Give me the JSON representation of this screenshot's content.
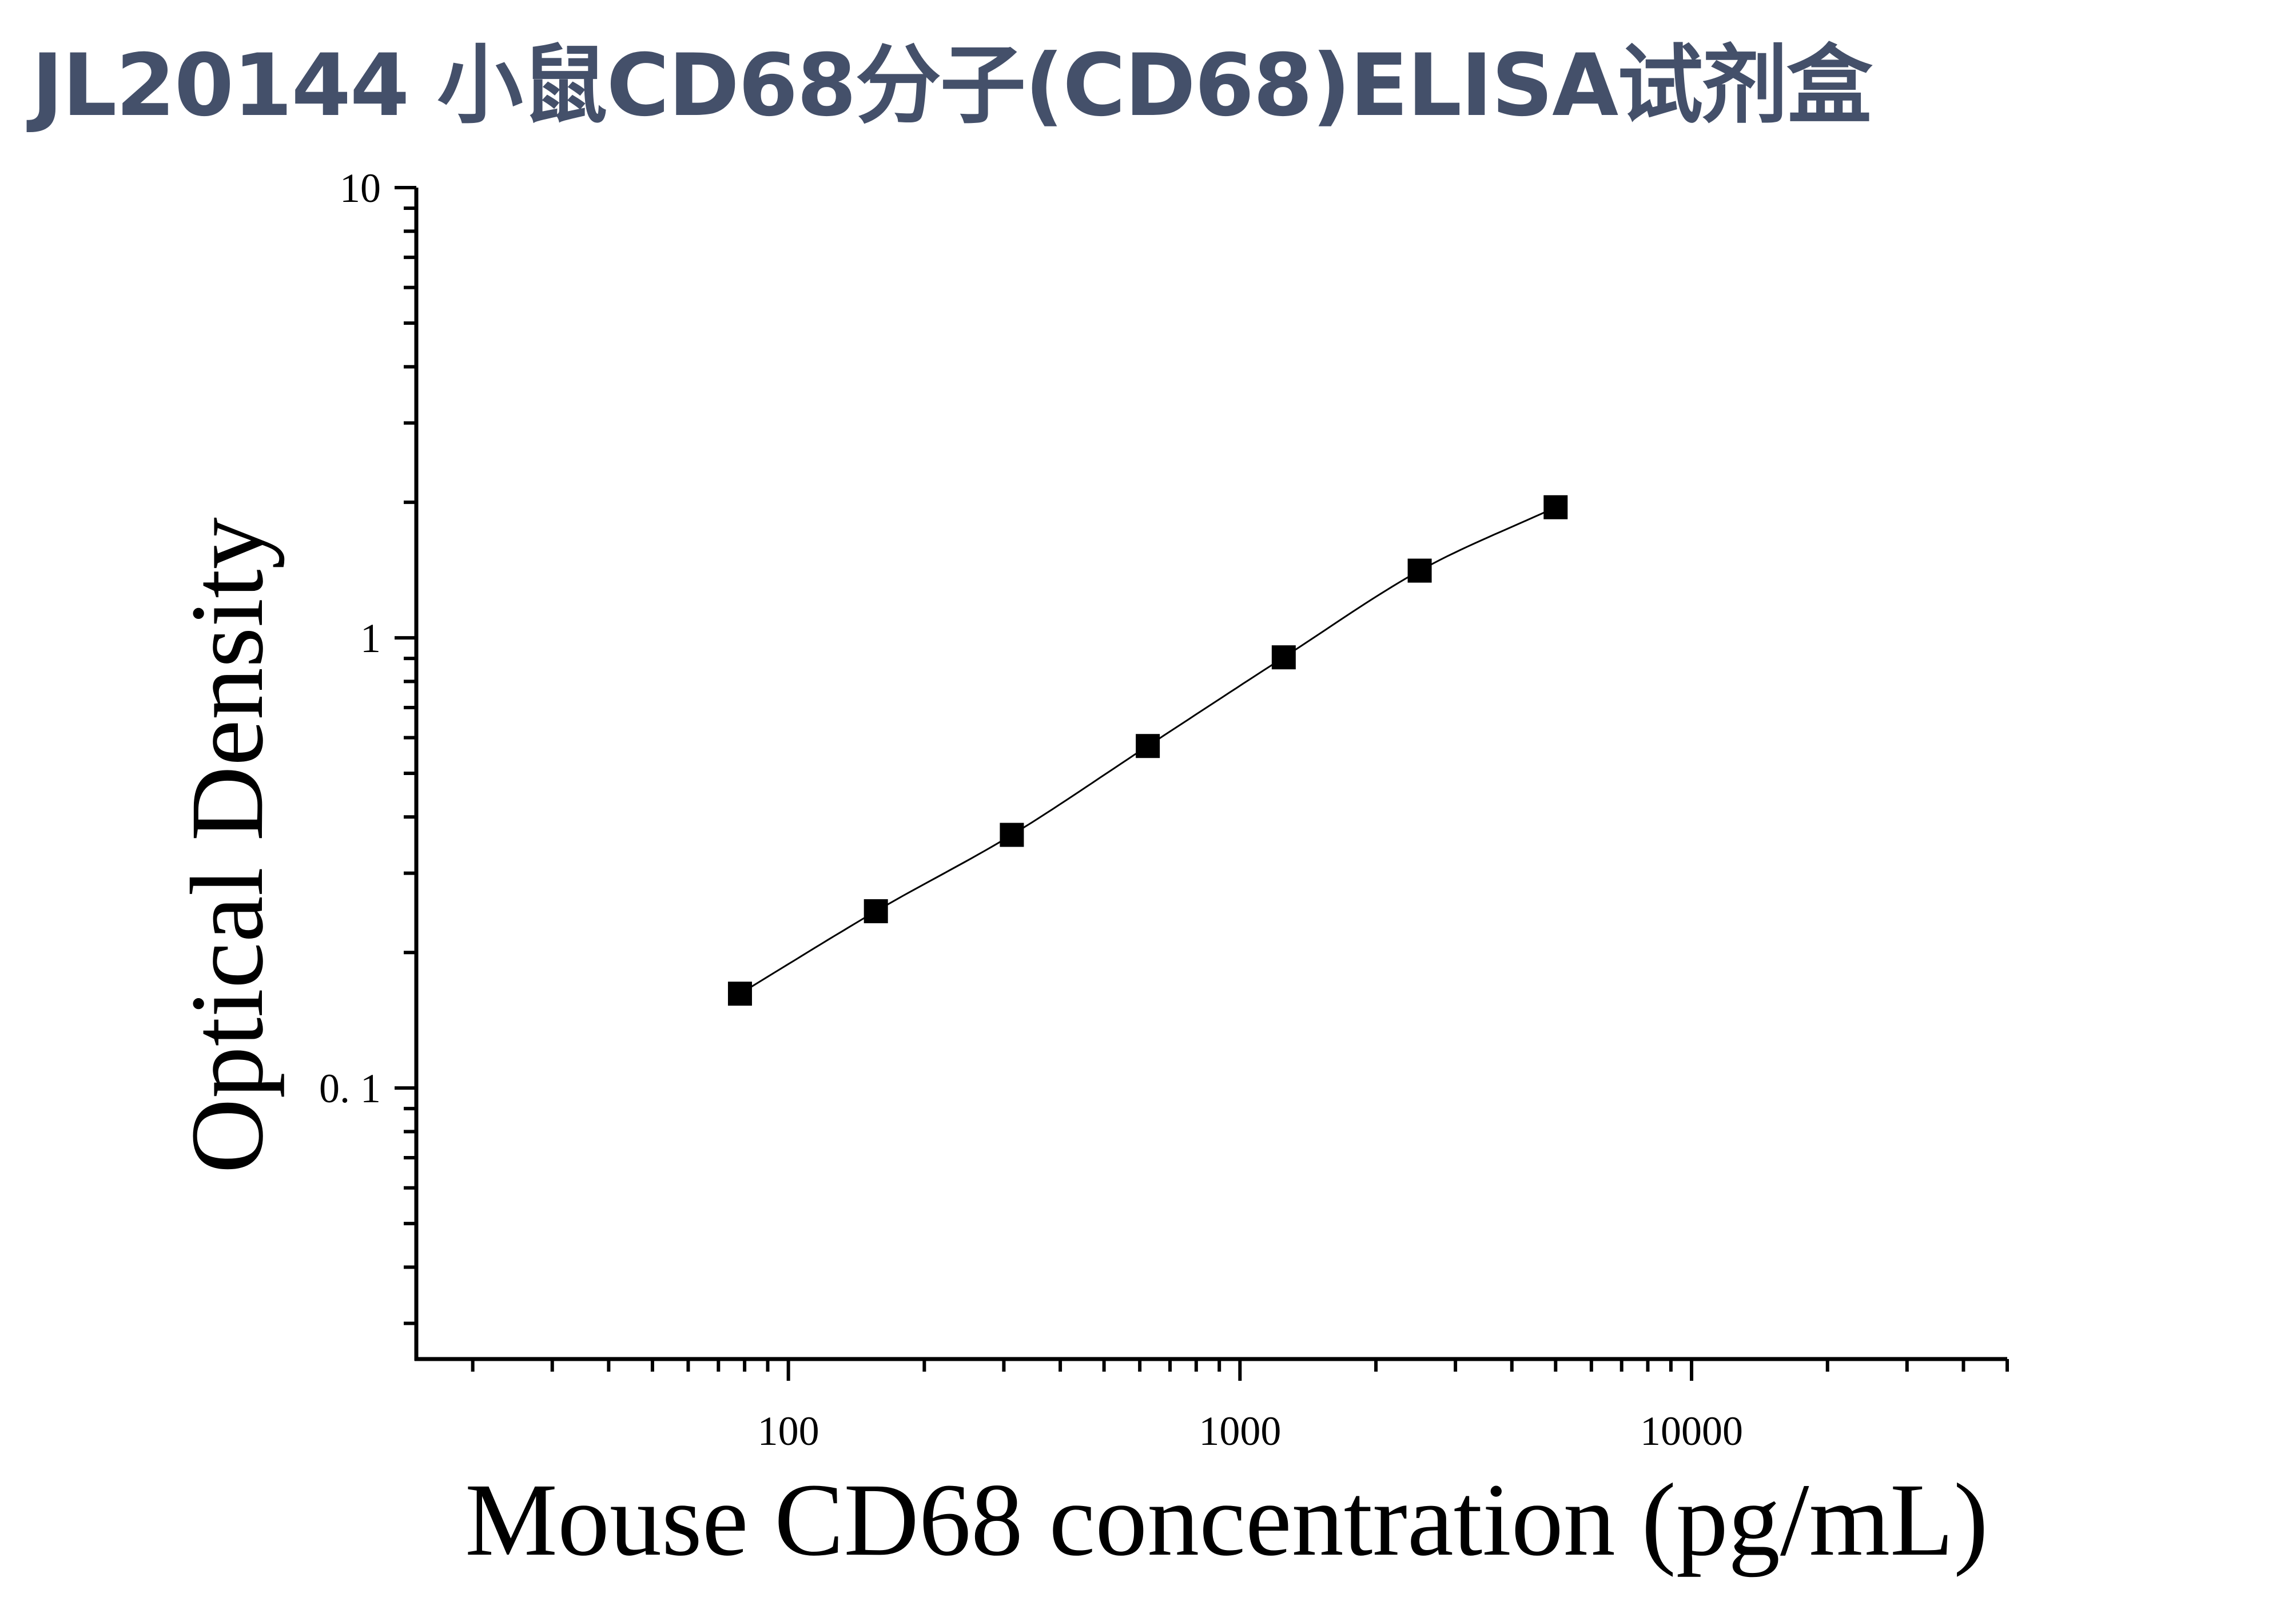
{
  "header": {
    "title": "JL20144 小鼠CD68分子(CD68)ELISA试剂盒"
  },
  "chart_data": {
    "type": "scatter",
    "xlabel": "Mouse CD68 concentration (pg/mL)",
    "ylabel": "Optical Density",
    "x_scale": "log",
    "y_scale": "log",
    "xlim": [
      15,
      50000
    ],
    "ylim": [
      0.025,
      10
    ],
    "x_ticks": [
      {
        "value": 100,
        "label": "100"
      },
      {
        "value": 1000,
        "label": "1000"
      },
      {
        "value": 10000,
        "label": "10000"
      }
    ],
    "y_ticks": [
      {
        "value": 0.1,
        "label": "0. 1"
      },
      {
        "value": 1,
        "label": "1"
      },
      {
        "value": 10,
        "label": "10"
      }
    ],
    "grid": false,
    "marker": "square",
    "color": "#000000",
    "series": [
      {
        "x": [
          78.125,
          156.25,
          312.5,
          625,
          1250,
          2500,
          5000
        ],
        "y": [
          0.162,
          0.247,
          0.365,
          0.575,
          0.905,
          1.41,
          1.95
        ]
      }
    ],
    "fit_curve": true
  }
}
